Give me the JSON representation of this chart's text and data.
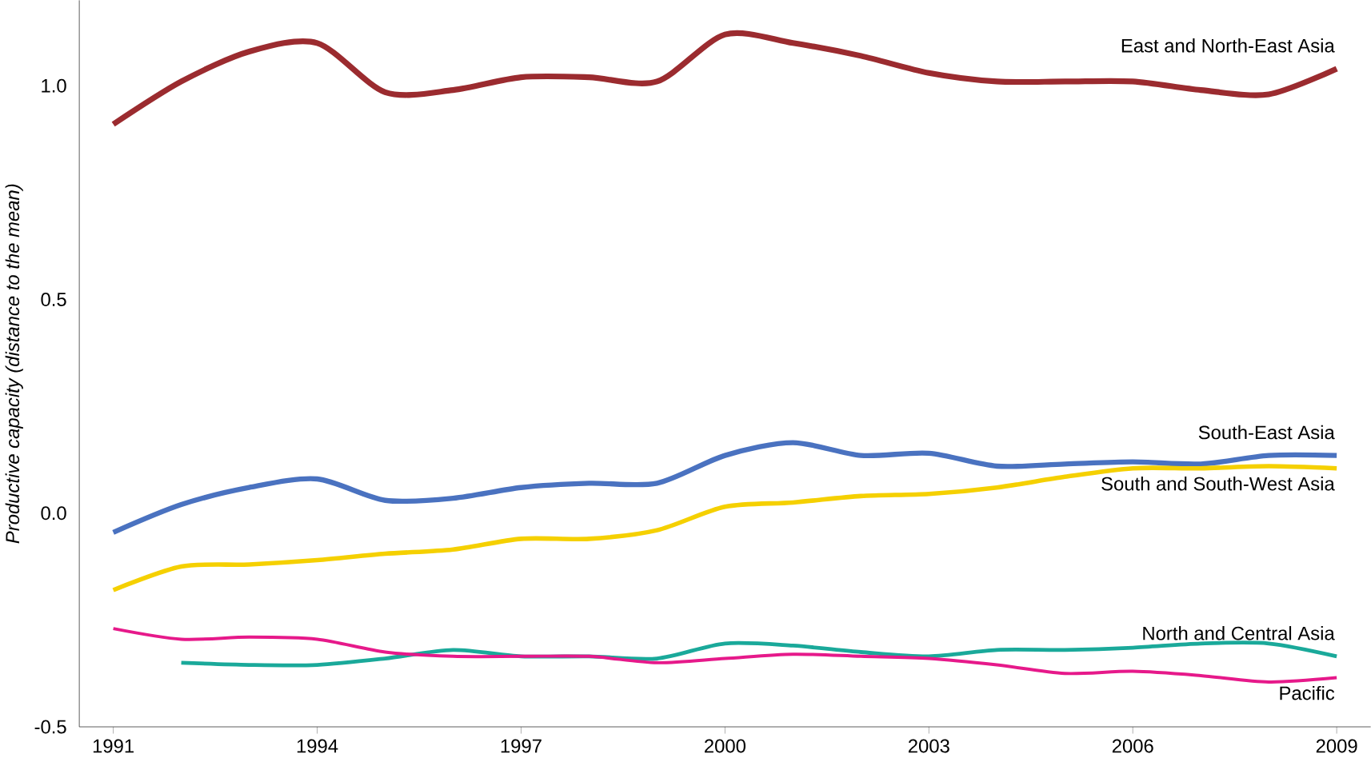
{
  "chart_data": {
    "type": "line",
    "ylabel": "Productive capacity (distance to the mean)",
    "x": [
      1991,
      1992,
      1993,
      1994,
      1995,
      1996,
      1997,
      1998,
      1999,
      2000,
      2001,
      2002,
      2003,
      2004,
      2005,
      2006,
      2007,
      2008,
      2009
    ],
    "xlim": [
      1990.5,
      2009.5
    ],
    "xticks": [
      1991,
      1994,
      1997,
      2000,
      2003,
      2006,
      2009
    ],
    "ylim": [
      -0.5,
      1.2
    ],
    "yticks": [
      {
        "value": 1.0,
        "label": "1.0"
      },
      {
        "value": 0.5,
        "label": "0.5"
      },
      {
        "value": 0.0,
        "label": "0.0"
      },
      {
        "value": -0.5,
        "label": "-0.5"
      }
    ],
    "grid": false,
    "legend": false,
    "series": [
      {
        "name": "East and North-East Asia",
        "color": "#9b2b2f",
        "values": [
          0.91,
          1.01,
          1.08,
          1.1,
          0.985,
          0.99,
          1.02,
          1.02,
          1.01,
          1.12,
          1.1,
          1.07,
          1.03,
          1.01,
          1.01,
          1.01,
          0.99,
          0.98,
          1.04
        ]
      },
      {
        "name": "South-East Asia",
        "color": "#4a72c0",
        "values": [
          -0.045,
          0.02,
          0.06,
          0.08,
          0.03,
          0.035,
          0.06,
          0.07,
          0.07,
          0.135,
          0.165,
          0.135,
          0.14,
          0.11,
          0.115,
          0.12,
          0.115,
          0.135,
          0.135
        ]
      },
      {
        "name": "South and South-West Asia",
        "color": "#f5d000",
        "values": [
          -0.18,
          -0.125,
          -0.12,
          -0.11,
          -0.095,
          -0.085,
          -0.06,
          -0.06,
          -0.04,
          0.015,
          0.025,
          0.04,
          0.045,
          0.06,
          0.085,
          0.105,
          0.105,
          0.11,
          0.105
        ]
      },
      {
        "name": "North and Central Asia",
        "color": "#1aa99a",
        "values": [
          null,
          -0.35,
          -0.355,
          -0.355,
          -0.34,
          -0.32,
          -0.335,
          -0.335,
          -0.34,
          -0.305,
          -0.31,
          -0.325,
          -0.335,
          -0.32,
          -0.32,
          -0.315,
          -0.305,
          -0.305,
          -0.335
        ]
      },
      {
        "name": "Pacific",
        "color": "#e6198a",
        "values": [
          -0.27,
          -0.295,
          -0.29,
          -0.295,
          -0.325,
          -0.335,
          -0.335,
          -0.335,
          -0.35,
          -0.34,
          -0.33,
          -0.335,
          -0.34,
          -0.355,
          -0.375,
          -0.37,
          -0.38,
          -0.395,
          -0.385
        ]
      }
    ]
  }
}
